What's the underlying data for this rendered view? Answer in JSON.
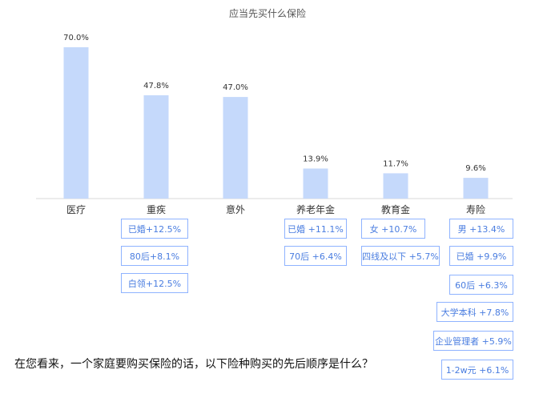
{
  "chart_data": {
    "type": "bar",
    "title": "应当先买什么保险",
    "categories": [
      "医疗",
      "重疾",
      "意外",
      "养老年金",
      "教育金",
      "寿险"
    ],
    "values": [
      70.0,
      47.8,
      47.0,
      13.9,
      11.7,
      9.6
    ],
    "value_labels": [
      "70.0%",
      "47.8%",
      "47.0%",
      "13.9%",
      "11.7%",
      "9.6%"
    ],
    "bar_color": "#c5d9fb",
    "ylim": [
      0,
      80
    ],
    "annotations": {
      "重疾": [
        "已婚+12.5%",
        "80后+8.1%",
        "白领+12.5%"
      ],
      "养老年金": [
        "已婚 +11.1%",
        "70后 +6.4%"
      ],
      "教育金": [
        "女 +10.7%",
        "四线及以下 +5.7%"
      ],
      "寿险": [
        "男 +13.4%",
        "已婚 +9.9%",
        "60后 +6.3%",
        "大学本科 +7.8%",
        "企业管理者 +5.9%",
        "1-2w元 +6.1%"
      ]
    }
  },
  "question": "在您看来，一个家庭要购买保险的话，以下险种购买的先后顺序是什么？",
  "colors": {
    "annotation_border": "#8fb3ff",
    "annotation_text": "#4a7de0"
  }
}
